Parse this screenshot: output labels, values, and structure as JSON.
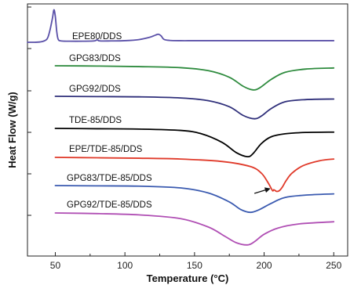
{
  "chart_data": {
    "type": "line",
    "xlabel": "Temperature (°C)",
    "ylabel": "Heat Flow (W/g)",
    "xlim": [
      30,
      260
    ],
    "xticks": [
      50,
      100,
      150,
      200,
      250
    ],
    "yticks_labeled": false,
    "grid": false,
    "legend": "none",
    "series": [
      {
        "name": "EPE80/DDS",
        "color": "#5a50a8",
        "x": [
          30,
          35,
          40,
          44,
          46,
          48,
          49,
          50,
          51,
          52,
          54,
          60,
          70,
          78,
          80,
          82,
          90,
          100,
          110,
          118,
          122,
          124,
          126,
          128,
          132,
          140,
          150,
          170,
          200,
          230,
          250
        ],
        "y": [
          0.03,
          0.03,
          0.05,
          0.15,
          0.45,
          0.95,
          1.25,
          1.0,
          0.45,
          0.15,
          0.08,
          0.07,
          0.07,
          0.08,
          0.12,
          0.08,
          0.08,
          0.09,
          0.13,
          0.22,
          0.3,
          0.33,
          0.27,
          0.14,
          0.1,
          0.09,
          0.09,
          0.09,
          0.09,
          0.09,
          0.09
        ]
      },
      {
        "name": "GPG83/DDS",
        "color": "#2e8b3e",
        "x": [
          50,
          80,
          110,
          140,
          160,
          175,
          185,
          192,
          197,
          205,
          215,
          230,
          250
        ],
        "y": [
          0.0,
          -0.01,
          -0.03,
          -0.07,
          -0.18,
          -0.42,
          -0.75,
          -0.88,
          -0.8,
          -0.5,
          -0.24,
          -0.12,
          -0.08
        ]
      },
      {
        "name": "GPG92/DDS",
        "color": "#2f2f7a",
        "x": [
          50,
          80,
          110,
          140,
          160,
          175,
          185,
          193,
          198,
          205,
          215,
          230,
          250
        ],
        "y": [
          0.0,
          -0.01,
          -0.02,
          -0.06,
          -0.16,
          -0.38,
          -0.7,
          -0.82,
          -0.72,
          -0.45,
          -0.2,
          -0.12,
          -0.1
        ]
      },
      {
        "name": "TDE-85/DDS",
        "color": "#000000",
        "x": [
          50,
          80,
          110,
          140,
          155,
          170,
          180,
          188,
          192,
          198,
          205,
          215,
          230,
          250
        ],
        "y": [
          0.0,
          -0.01,
          -0.02,
          -0.06,
          -0.16,
          -0.42,
          -0.72,
          -0.84,
          -0.75,
          -0.45,
          -0.25,
          -0.16,
          -0.12,
          -0.11
        ]
      },
      {
        "name": "EPE/TDE-85/DDS",
        "color": "#e03a2a",
        "x": [
          50,
          80,
          110,
          140,
          170,
          190,
          198,
          203,
          206,
          207,
          209,
          211,
          213,
          216,
          220,
          228,
          240,
          250
        ],
        "y": [
          0.0,
          -0.01,
          -0.02,
          -0.04,
          -0.1,
          -0.22,
          -0.38,
          -0.62,
          -0.8,
          -0.78,
          -0.82,
          -0.8,
          -0.72,
          -0.55,
          -0.38,
          -0.2,
          -0.08,
          -0.04
        ]
      },
      {
        "name": "GPG83/TDE-85/DDS",
        "color": "#3a5ab0",
        "x": [
          50,
          80,
          110,
          140,
          160,
          175,
          183,
          190,
          196,
          205,
          215,
          230,
          250
        ],
        "y": [
          0.0,
          -0.01,
          -0.02,
          -0.08,
          -0.25,
          -0.55,
          -0.8,
          -0.9,
          -0.82,
          -0.6,
          -0.4,
          -0.32,
          -0.28
        ]
      },
      {
        "name": "GPG92/TDE-85/DDS",
        "color": "#b04fb4",
        "x": [
          50,
          80,
          110,
          140,
          160,
          172,
          180,
          188,
          193,
          200,
          210,
          225,
          250
        ],
        "y": [
          0.0,
          -0.02,
          -0.06,
          -0.18,
          -0.45,
          -0.75,
          -0.95,
          -1.02,
          -0.92,
          -0.68,
          -0.48,
          -0.35,
          -0.28
        ]
      }
    ],
    "annotations": [
      {
        "type": "arrow",
        "x_from": 193,
        "x_to": 204,
        "series": "EPE/TDE-85/DDS",
        "points_to_x": 205
      }
    ]
  }
}
